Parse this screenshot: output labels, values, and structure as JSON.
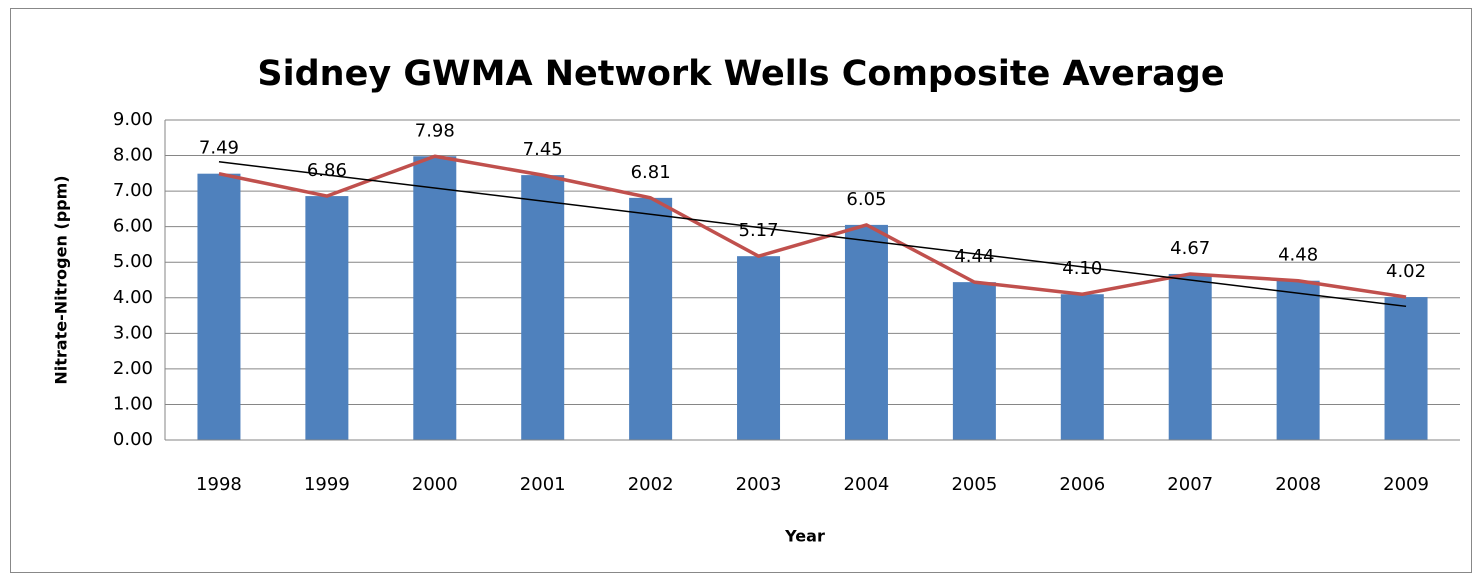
{
  "chart_data": {
    "type": "bar_line",
    "title": "Sidney GWMA Network Wells Composite Average",
    "x_label": "Year",
    "y_label": "Nitrate-Nitrogen (ppm)",
    "categories": [
      "1998",
      "1999",
      "2000",
      "2001",
      "2002",
      "2003",
      "2004",
      "2005",
      "2006",
      "2007",
      "2008",
      "2009"
    ],
    "values": [
      7.49,
      6.86,
      7.98,
      7.45,
      6.81,
      5.17,
      6.05,
      4.44,
      4.1,
      4.67,
      4.48,
      4.02
    ],
    "value_labels": [
      "7.49",
      "6.86",
      "7.98",
      "7.45",
      "6.81",
      "5.17",
      "6.05",
      "4.44",
      "4.10",
      "4.67",
      "4.48",
      "4.02"
    ],
    "color": "#4f81bd",
    "line_color": "#c0504d",
    "trendline": "linear",
    "trendline_color": "#000000",
    "ylim": [
      0,
      9
    ],
    "yticks": [
      {
        "value": 0,
        "label": "0.00"
      },
      {
        "value": 1,
        "label": "1.00"
      },
      {
        "value": 2,
        "label": "2.00"
      },
      {
        "value": 3,
        "label": "3.00"
      },
      {
        "value": 4,
        "label": "4.00"
      },
      {
        "value": 5,
        "label": "5.00"
      },
      {
        "value": 6,
        "label": "6.00"
      },
      {
        "value": 7,
        "label": "7.00"
      },
      {
        "value": 8,
        "label": "8.00"
      },
      {
        "value": 9,
        "label": "9.00"
      }
    ],
    "grid": true
  }
}
